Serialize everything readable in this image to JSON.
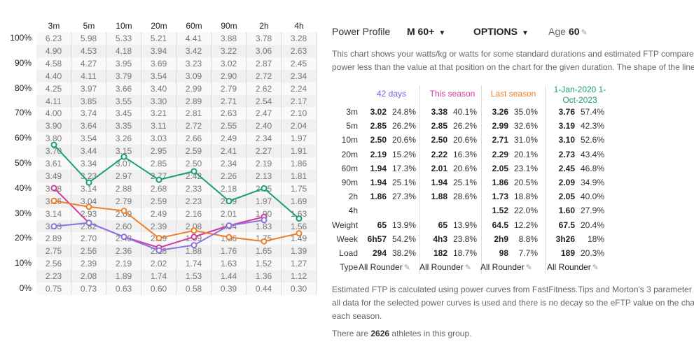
{
  "grid": {
    "durations": [
      "3m",
      "5m",
      "10m",
      "20m",
      "60m",
      "90m",
      "2h",
      "4h"
    ],
    "pct_labels": [
      "100%",
      "90%",
      "80%",
      "70%",
      "60%",
      "50%",
      "40%",
      "30%",
      "20%",
      "10%",
      "0%"
    ],
    "rows": [
      [
        "6.23",
        "5.98",
        "5.33",
        "5.21",
        "4.41",
        "3.88",
        "3.78",
        "3.28"
      ],
      [
        "4.90",
        "4.53",
        "4.18",
        "3.94",
        "3.42",
        "3.22",
        "3.06",
        "2.63"
      ],
      [
        "4.58",
        "4.27",
        "3.95",
        "3.69",
        "3.23",
        "3.02",
        "2.87",
        "2.45"
      ],
      [
        "4.40",
        "4.11",
        "3.79",
        "3.54",
        "3.09",
        "2.90",
        "2.72",
        "2.34"
      ],
      [
        "4.25",
        "3.97",
        "3.66",
        "3.40",
        "2.99",
        "2.79",
        "2.62",
        "2.24"
      ],
      [
        "4.11",
        "3.85",
        "3.55",
        "3.30",
        "2.89",
        "2.71",
        "2.54",
        "2.17"
      ],
      [
        "4.00",
        "3.74",
        "3.45",
        "3.21",
        "2.81",
        "2.63",
        "2.47",
        "2.10"
      ],
      [
        "3.90",
        "3.64",
        "3.35",
        "3.11",
        "2.72",
        "2.55",
        "2.40",
        "2.04"
      ],
      [
        "3.80",
        "3.54",
        "3.26",
        "3.03",
        "2.66",
        "2.49",
        "2.34",
        "1.97"
      ],
      [
        "3.70",
        "3.44",
        "3.15",
        "2.95",
        "2.59",
        "2.41",
        "2.27",
        "1.91"
      ],
      [
        "3.61",
        "3.34",
        "3.07",
        "2.85",
        "2.50",
        "2.34",
        "2.19",
        "1.86"
      ],
      [
        "3.49",
        "3.23",
        "2.97",
        "2.77",
        "2.42",
        "2.26",
        "2.13",
        "1.81"
      ],
      [
        "3.38",
        "3.14",
        "2.88",
        "2.68",
        "2.33",
        "2.18",
        "2.05",
        "1.75"
      ],
      [
        "3.26",
        "3.04",
        "2.79",
        "2.59",
        "2.23",
        "2.09",
        "1.97",
        "1.69"
      ],
      [
        "3.14",
        "2.93",
        "2.69",
        "2.49",
        "2.16",
        "2.01",
        "1.90",
        "1.63"
      ],
      [
        "3.03",
        "2.82",
        "2.60",
        "2.39",
        "2.08",
        "1.94",
        "1.83",
        "1.56"
      ],
      [
        "2.89",
        "2.70",
        "2.48",
        "2.29",
        "1.99",
        "1.86",
        "1.75",
        "1.49"
      ],
      [
        "2.75",
        "2.56",
        "2.36",
        "2.18",
        "1.88",
        "1.76",
        "1.65",
        "1.39"
      ],
      [
        "2.56",
        "2.39",
        "2.19",
        "2.02",
        "1.74",
        "1.63",
        "1.52",
        "1.27"
      ],
      [
        "2.23",
        "2.08",
        "1.89",
        "1.74",
        "1.53",
        "1.44",
        "1.36",
        "1.12"
      ],
      [
        "0.75",
        "0.73",
        "0.63",
        "0.60",
        "0.58",
        "0.39",
        "0.44",
        "0.30"
      ]
    ]
  },
  "chart_data": {
    "type": "line",
    "x": [
      "3m",
      "5m",
      "10m",
      "20m",
      "60m",
      "90m",
      "2h",
      "4h"
    ],
    "ylim": [
      0,
      100
    ],
    "series": [
      {
        "color": "#1a9e77",
        "values": [
          57.4,
          42.3,
          52.6,
          43.4,
          46.8,
          34.9,
          40.0,
          27.9
        ]
      },
      {
        "color": "#d03c9e",
        "values": [
          40.1,
          26.2,
          20.6,
          16.3,
          20.6,
          25.1,
          28.6,
          null
        ]
      },
      {
        "color": "#f07e26",
        "values": [
          35.0,
          32.6,
          31.0,
          20.1,
          23.1,
          20.5,
          18.8,
          22.0
        ]
      },
      {
        "color": "#8d72e1",
        "values": [
          24.8,
          26.2,
          20.6,
          15.2,
          17.3,
          25.1,
          27.3,
          null
        ]
      }
    ]
  },
  "profile": {
    "label": "Power Profile",
    "group": "M 60+",
    "options": "OPTIONS",
    "age_label": "Age",
    "age_value": "60"
  },
  "description1": [
    "This chart shows your watts/kg or watts for some standard durations and estimated FTP compare",
    "power less than the value at that position on the chart for the given duration. The shape of the line"
  ],
  "stats": {
    "columns": [
      {
        "title": "42 days",
        "color": "#7b5fd9"
      },
      {
        "title": "This season",
        "color": "#d03c9e"
      },
      {
        "title": "Last season",
        "color": "#f07e26"
      },
      {
        "title": "1-Jan-2020 1-Oct-2023",
        "title_line1": "1-Jan-2020 1-",
        "title_line2": "Oct-2023",
        "color": "#1a9e77"
      }
    ],
    "rows": [
      {
        "label": "3m",
        "cells": [
          [
            "3.02",
            "24.8%"
          ],
          [
            "3.38",
            "40.1%"
          ],
          [
            "3.26",
            "35.0%"
          ],
          [
            "3.76",
            "57.4%"
          ]
        ]
      },
      {
        "label": "5m",
        "cells": [
          [
            "2.85",
            "26.2%"
          ],
          [
            "2.85",
            "26.2%"
          ],
          [
            "2.99",
            "32.6%"
          ],
          [
            "3.19",
            "42.3%"
          ]
        ]
      },
      {
        "label": "10m",
        "cells": [
          [
            "2.50",
            "20.6%"
          ],
          [
            "2.50",
            "20.6%"
          ],
          [
            "2.71",
            "31.0%"
          ],
          [
            "3.10",
            "52.6%"
          ]
        ]
      },
      {
        "label": "20m",
        "cells": [
          [
            "2.19",
            "15.2%"
          ],
          [
            "2.22",
            "16.3%"
          ],
          [
            "2.29",
            "20.1%"
          ],
          [
            "2.73",
            "43.4%"
          ]
        ]
      },
      {
        "label": "60m",
        "cells": [
          [
            "1.94",
            "17.3%"
          ],
          [
            "2.01",
            "20.6%"
          ],
          [
            "2.05",
            "23.1%"
          ],
          [
            "2.45",
            "46.8%"
          ]
        ]
      },
      {
        "label": "90m",
        "cells": [
          [
            "1.94",
            "25.1%"
          ],
          [
            "1.94",
            "25.1%"
          ],
          [
            "1.86",
            "20.5%"
          ],
          [
            "2.09",
            "34.9%"
          ]
        ]
      },
      {
        "label": "2h",
        "cells": [
          [
            "1.86",
            "27.3%"
          ],
          [
            "1.88",
            "28.6%"
          ],
          [
            "1.73",
            "18.8%"
          ],
          [
            "2.05",
            "40.0%"
          ]
        ]
      },
      {
        "label": "4h",
        "cells": [
          [
            "",
            ""
          ],
          [
            "",
            ""
          ],
          [
            "1.52",
            "22.0%"
          ],
          [
            "1.60",
            "27.9%"
          ]
        ]
      },
      {
        "label": "Weight",
        "cells": [
          [
            "65",
            "13.9%"
          ],
          [
            "65",
            "13.9%"
          ],
          [
            "64.5",
            "12.2%"
          ],
          [
            "67.5",
            "20.4%"
          ]
        ]
      },
      {
        "label": "Week",
        "cells": [
          [
            "6h57",
            "54.2%"
          ],
          [
            "4h3",
            "23.8%"
          ],
          [
            "2h9",
            "8.8%"
          ],
          [
            "3h26",
            "18%"
          ]
        ]
      },
      {
        "label": "Load",
        "cells": [
          [
            "294",
            "38.2%"
          ],
          [
            "182",
            "18.7%"
          ],
          [
            "98",
            "7.7%"
          ],
          [
            "189",
            "20.3%"
          ]
        ]
      }
    ],
    "type_label": "Type",
    "type_values": [
      "All Rounder",
      "All Rounder",
      "All Rounder",
      "All Rounder"
    ]
  },
  "description2": [
    "Estimated FTP is calculated using power curves from FastFitness.Tips and Morton's 3 parameter",
    "all data for the selected power curves is used and there is no decay so the eFTP value on the char",
    "each season."
  ],
  "athletes": {
    "prefix": "There are",
    "count": "2626",
    "suffix": "athletes in this group."
  }
}
